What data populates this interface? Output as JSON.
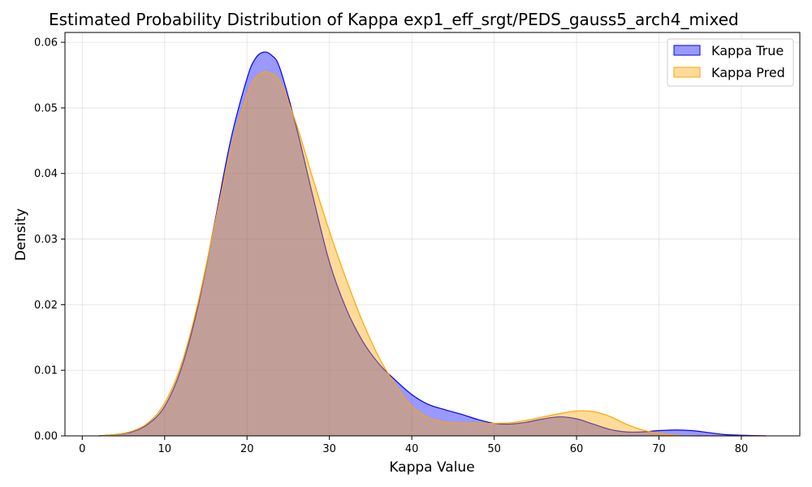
{
  "chart_data": {
    "type": "area",
    "title": "Estimated Probability Distribution of Kappa exp1_eff_srgt/PEDS_gauss5_arch4_mixed",
    "xlabel": "Kappa Value",
    "ylabel": "Density",
    "xlim": [
      -2.1,
      87.1
    ],
    "ylim": [
      0,
      0.0615
    ],
    "xticks": [
      "0",
      "10",
      "20",
      "30",
      "40",
      "50",
      "60",
      "70",
      "80"
    ],
    "yticks": [
      "0.00",
      "0.01",
      "0.02",
      "0.03",
      "0.04",
      "0.05",
      "0.06"
    ],
    "grid": true,
    "legend_position": "top-right",
    "series": [
      {
        "name": "Kappa True",
        "color": "#0000ff",
        "x": [
          2,
          4,
          6,
          8,
          10,
          12,
          14,
          16,
          18,
          20,
          21,
          22,
          23,
          24,
          26,
          28,
          30,
          32,
          34,
          36,
          38,
          40,
          42,
          44,
          46,
          48,
          50,
          52,
          54,
          56,
          58,
          60,
          62,
          64,
          66,
          68,
          70,
          72,
          74,
          76,
          78,
          80,
          83
        ],
        "y": [
          0.0,
          0.0002,
          0.0006,
          0.0018,
          0.0045,
          0.0102,
          0.0195,
          0.032,
          0.045,
          0.0545,
          0.0575,
          0.0585,
          0.058,
          0.056,
          0.047,
          0.0365,
          0.0265,
          0.0195,
          0.0145,
          0.011,
          0.0085,
          0.0063,
          0.0048,
          0.004,
          0.0033,
          0.0025,
          0.0019,
          0.0018,
          0.0021,
          0.0026,
          0.0029,
          0.0026,
          0.0018,
          0.001,
          0.0006,
          0.0006,
          0.0008,
          0.0009,
          0.0008,
          0.0005,
          0.0002,
          0.0001,
          0.0
        ]
      },
      {
        "name": "Kappa Pred",
        "color": "#ffa500",
        "x": [
          2,
          4,
          6,
          8,
          10,
          12,
          14,
          16,
          18,
          20,
          21,
          22,
          23,
          24,
          26,
          28,
          30,
          32,
          34,
          36,
          38,
          40,
          42,
          44,
          46,
          48,
          50,
          52,
          54,
          56,
          58,
          60,
          62,
          64,
          66,
          68,
          70,
          72,
          74,
          76,
          78,
          80,
          83
        ],
        "y": [
          0.0,
          0.0002,
          0.0007,
          0.002,
          0.005,
          0.0108,
          0.02,
          0.0318,
          0.0435,
          0.052,
          0.0545,
          0.0555,
          0.0552,
          0.054,
          0.0475,
          0.0392,
          0.0312,
          0.024,
          0.0175,
          0.012,
          0.0078,
          0.0045,
          0.0028,
          0.0021,
          0.0019,
          0.0019,
          0.0019,
          0.002,
          0.0024,
          0.0029,
          0.0034,
          0.0038,
          0.0037,
          0.003,
          0.0018,
          0.0009,
          0.0004,
          0.0001,
          0.0,
          0.0,
          0.0,
          0.0,
          0.0
        ]
      }
    ]
  }
}
